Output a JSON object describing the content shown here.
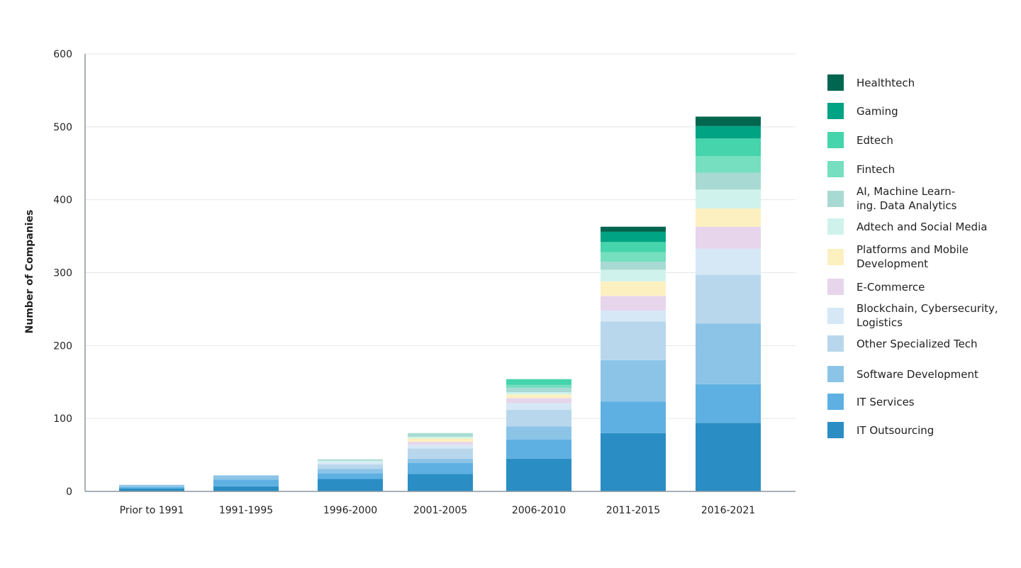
{
  "chart_data": {
    "type": "bar",
    "stacked": true,
    "title": "",
    "xlabel": "",
    "ylabel": "Number of Companies",
    "ylim": [
      0,
      600
    ],
    "yticks": [
      0,
      100,
      200,
      300,
      400,
      500,
      600
    ],
    "grid": true,
    "legend_placement": "right",
    "categories": [
      "Prior to 1991",
      "1991-1995",
      "1996-2000",
      "2001-2005",
      "2006-2010",
      "2011-2015",
      "2016-2021"
    ],
    "series": [
      {
        "name": "IT Outsourcing",
        "color": "#2a8ec4",
        "values": [
          4,
          7,
          17,
          24,
          45,
          80,
          94
        ]
      },
      {
        "name": "IT Services",
        "color": "#5eb0e2",
        "values": [
          2,
          9,
          8,
          15,
          26,
          43,
          53
        ]
      },
      {
        "name": "Software Development",
        "color": "#8cc4e8",
        "values": [
          3,
          6,
          6,
          6,
          18,
          57,
          83
        ]
      },
      {
        "name": "Other Specialized Tech",
        "color": "#b8d7ec",
        "values": [
          0,
          0,
          6,
          14,
          23,
          53,
          67
        ]
      },
      {
        "name": "Blockchain, Cybersecurity,\nLogistics",
        "color": "#d6e8f6",
        "values": [
          0,
          0,
          3,
          5,
          9,
          15,
          36
        ]
      },
      {
        "name": "E-Commerce",
        "color": "#e7d5ec",
        "values": [
          0,
          0,
          0,
          4,
          7,
          20,
          30
        ]
      },
      {
        "name": "Platforms and Mobile\nDevelopment",
        "color": "#fdf0c0",
        "values": [
          0,
          0,
          0,
          5,
          5,
          20,
          25
        ]
      },
      {
        "name": "Adtech and Social Media",
        "color": "#cff3ec",
        "values": [
          0,
          0,
          2,
          2,
          3,
          16,
          26
        ]
      },
      {
        "name": "AI, Machine Learn-\ning. Data Analytics",
        "color": "#a8dad3",
        "values": [
          0,
          0,
          2,
          5,
          6,
          11,
          23
        ]
      },
      {
        "name": "Fintech",
        "color": "#75dfc0",
        "values": [
          0,
          0,
          0,
          0,
          4,
          13,
          23
        ]
      },
      {
        "name": "Edtech",
        "color": "#45d4ab",
        "values": [
          0,
          0,
          0,
          0,
          8,
          14,
          24
        ]
      },
      {
        "name": "Gaming",
        "color": "#00a383",
        "values": [
          0,
          0,
          0,
          0,
          0,
          14,
          17
        ]
      },
      {
        "name": "Healthtech",
        "color": "#00664f",
        "values": [
          0,
          0,
          0,
          0,
          0,
          7,
          13
        ]
      }
    ]
  }
}
